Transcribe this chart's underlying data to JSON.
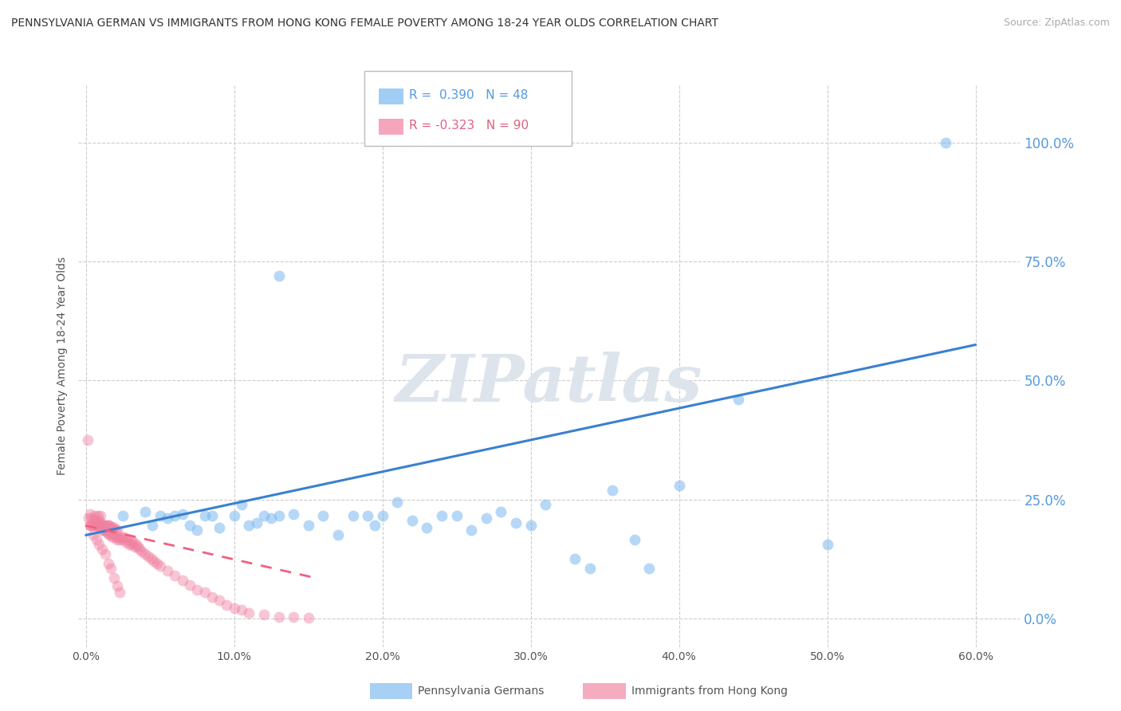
{
  "title": "PENNSYLVANIA GERMAN VS IMMIGRANTS FROM HONG KONG FEMALE POVERTY AMONG 18-24 YEAR OLDS CORRELATION CHART",
  "source": "Source: ZipAtlas.com",
  "ylabel": "Female Poverty Among 18-24 Year Olds",
  "xtick_labels": [
    "0.0%",
    "10.0%",
    "20.0%",
    "30.0%",
    "40.0%",
    "50.0%",
    "60.0%"
  ],
  "xtick_vals": [
    0,
    0.1,
    0.2,
    0.3,
    0.4,
    0.5,
    0.6
  ],
  "ytick_labels": [
    "0.0%",
    "25.0%",
    "50.0%",
    "75.0%",
    "100.0%"
  ],
  "ytick_vals": [
    0,
    0.25,
    0.5,
    0.75,
    1.0
  ],
  "xlim": [
    -0.005,
    0.63
  ],
  "ylim": [
    -0.06,
    1.12
  ],
  "legend_label1": "Pennsylvania Germans",
  "legend_label2": "Immigrants from Hong Kong",
  "blue_color": "#7ab8f0",
  "pink_color": "#f080a0",
  "blue_line_color": "#3a80d0",
  "pink_line_color": "#f06080",
  "watermark": "ZIPatlas",
  "blue_line_x": [
    0.0,
    0.6
  ],
  "blue_line_y": [
    0.175,
    0.575
  ],
  "pink_line_x": [
    0.0,
    0.155
  ],
  "pink_line_y": [
    0.195,
    0.085
  ],
  "blue_N": 48,
  "pink_N": 90,
  "blue_scatter_x": [
    0.025,
    0.04,
    0.045,
    0.05,
    0.055,
    0.06,
    0.065,
    0.07,
    0.075,
    0.08,
    0.085,
    0.09,
    0.1,
    0.105,
    0.11,
    0.115,
    0.12,
    0.125,
    0.13,
    0.14,
    0.15,
    0.16,
    0.17,
    0.18,
    0.19,
    0.195,
    0.2,
    0.21,
    0.22,
    0.23,
    0.24,
    0.25,
    0.26,
    0.27,
    0.28,
    0.29,
    0.3,
    0.31,
    0.33,
    0.34,
    0.355,
    0.37,
    0.38,
    0.4,
    0.44,
    0.5,
    0.58,
    0.13
  ],
  "blue_scatter_y": [
    0.215,
    0.225,
    0.195,
    0.215,
    0.21,
    0.215,
    0.22,
    0.195,
    0.185,
    0.215,
    0.215,
    0.19,
    0.215,
    0.24,
    0.195,
    0.2,
    0.215,
    0.21,
    0.215,
    0.22,
    0.195,
    0.215,
    0.175,
    0.215,
    0.215,
    0.195,
    0.215,
    0.245,
    0.205,
    0.19,
    0.215,
    0.215,
    0.185,
    0.21,
    0.225,
    0.2,
    0.195,
    0.24,
    0.125,
    0.105,
    0.27,
    0.165,
    0.105,
    0.28,
    0.46,
    0.155,
    1.0,
    0.72
  ],
  "pink_scatter_x": [
    0.001,
    0.002,
    0.003,
    0.003,
    0.004,
    0.004,
    0.005,
    0.005,
    0.006,
    0.006,
    0.007,
    0.007,
    0.008,
    0.008,
    0.009,
    0.009,
    0.01,
    0.01,
    0.01,
    0.011,
    0.011,
    0.012,
    0.012,
    0.013,
    0.013,
    0.014,
    0.014,
    0.015,
    0.015,
    0.016,
    0.016,
    0.017,
    0.017,
    0.018,
    0.018,
    0.019,
    0.019,
    0.02,
    0.02,
    0.021,
    0.021,
    0.022,
    0.023,
    0.024,
    0.025,
    0.026,
    0.027,
    0.028,
    0.029,
    0.03,
    0.031,
    0.032,
    0.033,
    0.034,
    0.035,
    0.036,
    0.038,
    0.04,
    0.042,
    0.044,
    0.046,
    0.048,
    0.05,
    0.055,
    0.06,
    0.065,
    0.07,
    0.075,
    0.08,
    0.085,
    0.09,
    0.095,
    0.1,
    0.105,
    0.11,
    0.12,
    0.13,
    0.14,
    0.15,
    0.003,
    0.005,
    0.007,
    0.009,
    0.011,
    0.013,
    0.015,
    0.017,
    0.019,
    0.021,
    0.023
  ],
  "pink_scatter_y": [
    0.375,
    0.21,
    0.22,
    0.195,
    0.21,
    0.195,
    0.205,
    0.195,
    0.215,
    0.195,
    0.2,
    0.195,
    0.215,
    0.195,
    0.205,
    0.195,
    0.215,
    0.19,
    0.2,
    0.195,
    0.185,
    0.195,
    0.185,
    0.195,
    0.185,
    0.195,
    0.18,
    0.195,
    0.18,
    0.195,
    0.175,
    0.19,
    0.175,
    0.19,
    0.17,
    0.19,
    0.175,
    0.185,
    0.17,
    0.185,
    0.165,
    0.17,
    0.165,
    0.17,
    0.165,
    0.17,
    0.16,
    0.165,
    0.155,
    0.165,
    0.155,
    0.16,
    0.15,
    0.155,
    0.15,
    0.145,
    0.14,
    0.135,
    0.13,
    0.125,
    0.12,
    0.115,
    0.11,
    0.1,
    0.09,
    0.08,
    0.07,
    0.06,
    0.055,
    0.045,
    0.038,
    0.028,
    0.022,
    0.018,
    0.012,
    0.008,
    0.004,
    0.003,
    0.002,
    0.195,
    0.175,
    0.165,
    0.155,
    0.145,
    0.135,
    0.115,
    0.105,
    0.085,
    0.068,
    0.055
  ]
}
